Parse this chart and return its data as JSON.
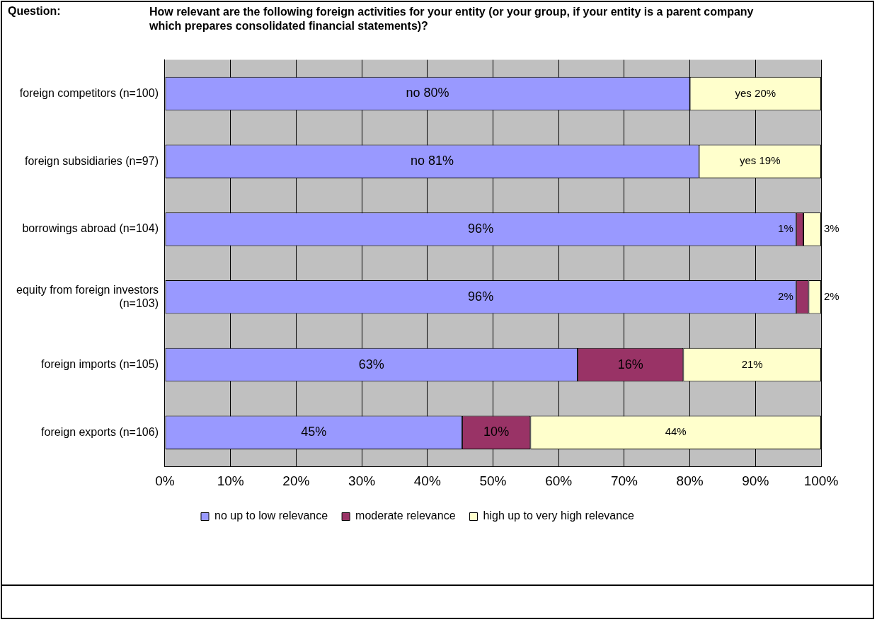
{
  "chart_data": {
    "type": "bar",
    "orientation": "horizontal",
    "stacked": true,
    "title": "How relevant are the following foreign activities for your entity (or your group, if your entity is a parent company which prepares consolidated financial statements)?",
    "annotations": [
      "Question:"
    ],
    "categories": [
      "foreign competitors (n=100)",
      "foreign subsidiaries (n=97)",
      "borrowings abroad (n=104)",
      "equity from foreign investors (n=103)",
      "foreign imports (n=105)",
      "foreign exports (n=106)"
    ],
    "series": [
      {
        "name": "no up to low relevance",
        "color": "#9999ff",
        "values": [
          80,
          81.4,
          96.2,
          96.2,
          62.9,
          45.3
        ],
        "value_labels": [
          "no 80%",
          "no 81%",
          "96%",
          "96%",
          "63%",
          "45%"
        ]
      },
      {
        "name": "moderate relevance",
        "color": "#993366",
        "values": [
          0,
          0,
          1.1,
          1.9,
          16.1,
          10.4
        ],
        "value_labels": [
          null,
          null,
          "1%",
          "2%",
          "16%",
          "10%"
        ]
      },
      {
        "name": "high up to very high relevance",
        "color": "#ffffcc",
        "values": [
          20,
          18.6,
          2.7,
          1.9,
          21,
          44.3
        ],
        "value_labels": [
          "yes 20%",
          "yes 19%",
          "3%",
          "2%",
          "21%",
          "44%"
        ]
      }
    ],
    "xlim": [
      0,
      100
    ],
    "xticks": [
      {
        "value": 0,
        "label": "0%"
      },
      {
        "value": 10,
        "label": "10%"
      },
      {
        "value": 20,
        "label": "20%"
      },
      {
        "value": 30,
        "label": "30%"
      },
      {
        "value": 40,
        "label": "40%"
      },
      {
        "value": 50,
        "label": "50%"
      },
      {
        "value": 60,
        "label": "60%"
      },
      {
        "value": 70,
        "label": "70%"
      },
      {
        "value": 80,
        "label": "80%"
      },
      {
        "value": 90,
        "label": "90%"
      },
      {
        "value": 100,
        "label": "100%"
      }
    ],
    "grid": "x",
    "legend": "bottom"
  }
}
